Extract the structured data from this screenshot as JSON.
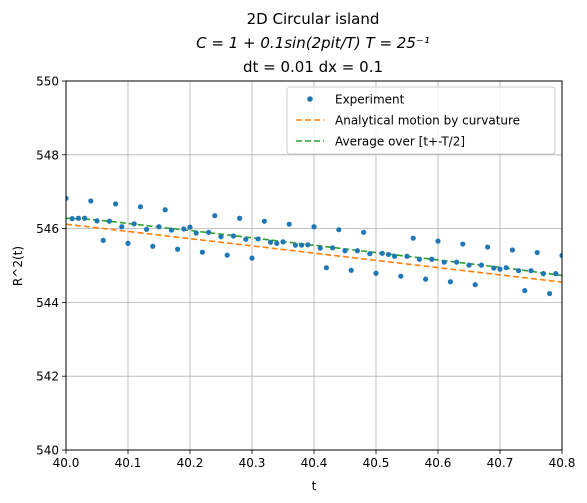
{
  "chart_data": {
    "type": "scatter",
    "title_lines": [
      "2D Circular island",
      "C = 1 + 0.1sin(2pit/T)  T = 25⁻¹",
      "dt = 0.01 dx = 0.1"
    ],
    "xlabel": "t",
    "ylabel": "R^2(t)",
    "xlim": [
      40.0,
      40.8
    ],
    "ylim": [
      540,
      550
    ],
    "xticks": [
      40.0,
      40.1,
      40.2,
      40.3,
      40.4,
      40.5,
      40.6,
      40.7,
      40.8
    ],
    "xtick_labels": [
      "40.0",
      "40.1",
      "40.2",
      "40.3",
      "40.4",
      "40.5",
      "40.6",
      "40.7",
      "40.8"
    ],
    "yticks": [
      540,
      542,
      544,
      546,
      548,
      550
    ],
    "ytick_labels": [
      "540",
      "542",
      "544",
      "546",
      "548",
      "550"
    ],
    "grid": true,
    "legend_position": "top-right",
    "series": [
      {
        "name": "Experiment",
        "kind": "points",
        "color": "#1f77b4",
        "x": [
          40.0,
          40.02,
          40.04,
          40.06,
          40.08,
          40.1,
          40.12,
          40.14,
          40.16,
          40.18,
          40.2,
          40.22,
          40.24,
          40.26,
          40.28,
          40.3,
          40.32,
          40.34,
          40.36,
          40.38,
          40.4,
          40.42,
          40.44,
          40.46,
          40.48,
          40.5,
          40.52,
          40.54,
          40.56,
          40.58,
          40.6,
          40.62,
          40.64,
          40.66,
          40.68,
          40.7,
          40.72,
          40.74,
          40.76,
          40.78,
          40.8,
          40.01,
          40.03,
          40.05,
          40.07,
          40.09,
          40.11,
          40.13,
          40.15,
          40.17,
          40.19,
          40.21,
          40.23,
          40.25,
          40.27,
          40.29,
          40.31,
          40.33,
          40.35,
          40.37,
          40.39,
          40.41,
          40.43,
          40.45,
          40.47,
          40.49,
          40.51,
          40.53,
          40.55,
          40.57,
          40.59,
          40.61,
          40.63,
          40.65,
          40.67,
          40.69,
          40.71,
          40.73,
          40.75,
          40.77,
          40.79
        ],
        "y": [
          546.82,
          546.28,
          546.75,
          545.68,
          546.67,
          545.6,
          546.59,
          545.52,
          546.51,
          545.44,
          546.04,
          545.36,
          546.35,
          545.28,
          546.28,
          545.2,
          546.2,
          545.6,
          546.12,
          545.55,
          546.05,
          544.94,
          545.97,
          544.87,
          545.9,
          544.79,
          545.3,
          544.71,
          545.74,
          544.63,
          545.66,
          544.56,
          545.58,
          544.48,
          545.5,
          544.9,
          545.42,
          544.32,
          545.35,
          544.24,
          545.27,
          546.27,
          546.28,
          546.21,
          546.2,
          546.05,
          546.13,
          545.98,
          546.05,
          545.96,
          545.99,
          545.88,
          545.9,
          545.78,
          545.8,
          545.71,
          545.72,
          545.63,
          545.64,
          545.55,
          545.56,
          545.47,
          545.48,
          545.4,
          545.4,
          545.32,
          545.33,
          545.25,
          545.25,
          545.17,
          545.17,
          545.09,
          545.09,
          545.01,
          545.01,
          544.93,
          544.94,
          544.86,
          544.86,
          544.78,
          544.78
        ]
      },
      {
        "name": "Analytical motion by curvature",
        "kind": "line",
        "style": "dashed",
        "color": "#ff7f0e",
        "x": [
          40.0,
          40.8
        ],
        "y": [
          546.12,
          544.55
        ]
      },
      {
        "name": "Average over [t+-T/2]",
        "kind": "line",
        "style": "dashed",
        "color": "#2ca02c",
        "x": [
          40.0,
          40.04,
          40.08,
          40.12,
          40.16,
          40.2,
          40.24,
          40.28,
          40.32,
          40.36,
          40.4,
          40.44,
          40.48,
          40.52,
          40.56,
          40.6,
          40.64,
          40.68,
          40.72,
          40.76,
          40.8
        ],
        "y": [
          546.28,
          546.25,
          546.18,
          546.1,
          546.02,
          545.95,
          545.87,
          545.79,
          545.71,
          545.63,
          545.55,
          545.47,
          545.39,
          545.31,
          545.23,
          545.15,
          545.07,
          544.99,
          544.91,
          544.82,
          544.73
        ]
      }
    ]
  }
}
